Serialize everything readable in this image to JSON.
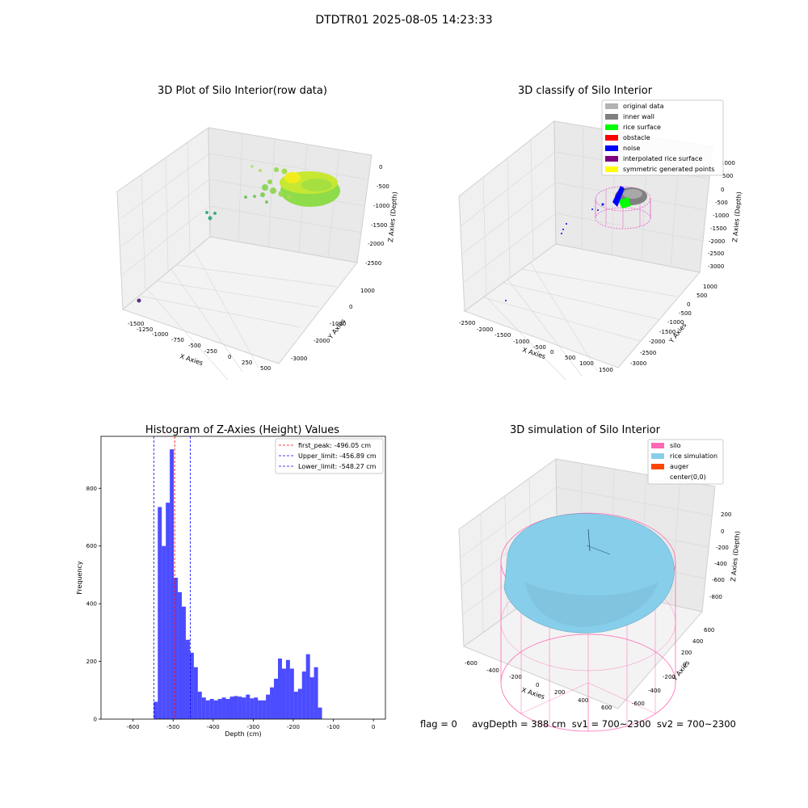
{
  "figure": {
    "title": "DTDTR01 2025-08-05 14:23:33"
  },
  "status": {
    "text": "flag = 0     avgDepth = 388 cm  sv1 = 700~2300  sv2 = 700~2300"
  },
  "panel_raw": {
    "title": "3D Plot of Silo Interior(row data)",
    "xlabel": "X Axies",
    "ylabel": "Y Axies",
    "zlabel": "Z Axies (Depth)",
    "xticks": [
      "-1500",
      "-1250",
      "-1000",
      "-750",
      "-500",
      "-250",
      "0",
      "250",
      "500"
    ],
    "yticks": [
      "-3000",
      "-2000",
      "-1000",
      "0",
      "1000"
    ],
    "zticks": [
      "0",
      "-500",
      "-1000",
      "-1500",
      "-2000",
      "-2500"
    ]
  },
  "panel_classify": {
    "title": "3D classify of Silo Interior",
    "xlabel": "X Axies",
    "ylabel": "Y Axies",
    "zlabel": "Z Axies (Depth)",
    "xticks": [
      "-2500",
      "-2000",
      "-1500",
      "-1000",
      "-500",
      "0",
      "500",
      "1000",
      "1500"
    ],
    "yticks": [
      "-3000",
      "-2500",
      "-2000",
      "-1500",
      "-1000",
      "-500",
      "0",
      "500",
      "1000"
    ],
    "zticks": [
      "1000",
      "500",
      "0",
      "-500",
      "-1000",
      "-1500",
      "-2000",
      "-2500",
      "-3000"
    ],
    "legend": [
      {
        "label": "original data",
        "color": "#b2b2b2"
      },
      {
        "label": "inner wall",
        "color": "#808080"
      },
      {
        "label": "rice surface",
        "color": "#00ff00"
      },
      {
        "label": "obstacle",
        "color": "#ff0000"
      },
      {
        "label": "noise",
        "color": "#0000ff"
      },
      {
        "label": "interpolated rice surface",
        "color": "#800080"
      },
      {
        "label": "symmetric generated points",
        "color": "#ffff00"
      }
    ]
  },
  "panel_sim": {
    "title": "3D simulation of Silo Interior",
    "xlabel": "X Axies",
    "ylabel": "Y Axies",
    "zlabel": "Z Axies (Depth)",
    "xticks": [
      "-600",
      "-400",
      "-200",
      "0",
      "200",
      "400",
      "600"
    ],
    "yticks": [
      "-600",
      "-400",
      "-200",
      "0",
      "200",
      "400",
      "600"
    ],
    "zticks": [
      "200",
      "0",
      "-200",
      "-400",
      "-600",
      "-800"
    ],
    "legend": [
      {
        "label": "silo",
        "color": "#ff69b4"
      },
      {
        "label": "rice simulation",
        "color": "#87ceeb"
      },
      {
        "label": "auger",
        "color": "#ff4500"
      },
      {
        "label": "center(0,0)",
        "color": "#ffffff"
      }
    ]
  },
  "chart_data": {
    "type": "bar",
    "title": "Histogram of Z-Axies (Height) Values",
    "xlabel": "Depth (cm)",
    "ylabel": "Frequency",
    "xlim": [
      -680,
      30
    ],
    "ylim": [
      0,
      980
    ],
    "xticks": [
      -600,
      -500,
      -400,
      -300,
      -200,
      -100,
      0
    ],
    "yticks": [
      0,
      200,
      400,
      600,
      800
    ],
    "bin_start": -548.27,
    "bin_width": 10.0,
    "values": [
      60,
      735,
      600,
      750,
      935,
      490,
      440,
      390,
      275,
      230,
      180,
      95,
      75,
      65,
      70,
      65,
      70,
      75,
      70,
      78,
      80,
      78,
      75,
      85,
      72,
      75,
      65,
      65,
      85,
      110,
      140,
      210,
      175,
      205,
      175,
      95,
      105,
      165,
      225,
      145,
      180,
      40
    ],
    "bar_color": "#0000ff",
    "bar_alpha": 0.7,
    "vlines": [
      {
        "label": "first_peak: -496.05 cm",
        "x": -496.05,
        "color": "#ff0000"
      },
      {
        "label": "Upper_limit: -456.89 cm",
        "x": -456.89,
        "color": "#0000ff"
      },
      {
        "label": "Lower_limit: -548.27 cm",
        "x": -548.27,
        "color": "#0000ff"
      }
    ],
    "legend_position": "top-right",
    "grid": false
  }
}
